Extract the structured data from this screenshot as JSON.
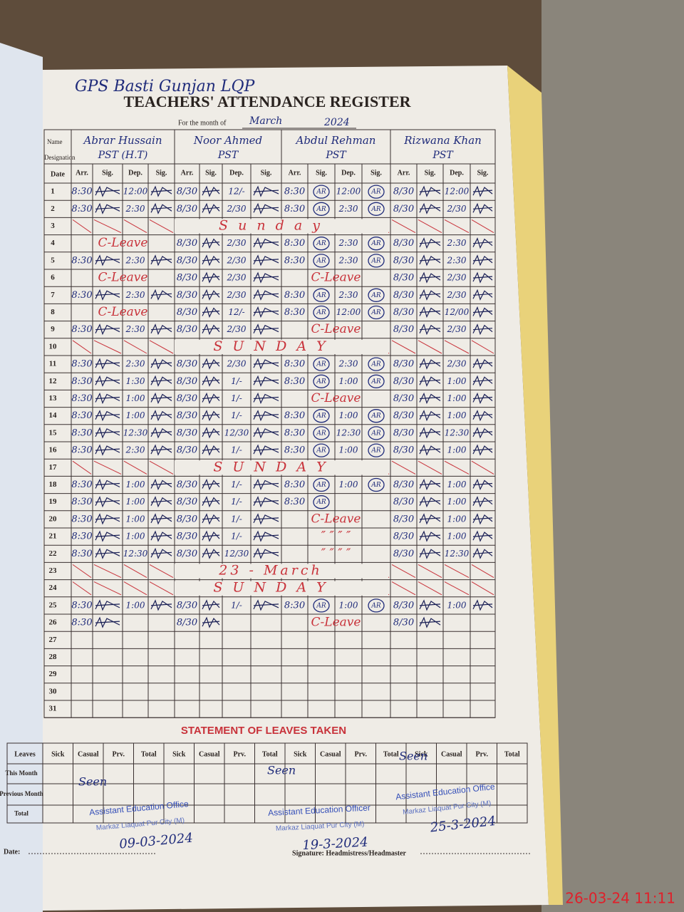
{
  "header": {
    "school": "GPS Basti Gunjan LQP",
    "title": "TEACHERS' ATTENDANCE REGISTER",
    "month_label": "For the month of",
    "month": "March",
    "year": "2024",
    "name_label": "Name",
    "designation_label": "Designation"
  },
  "table": {
    "columns": [
      "Date",
      "Arr.",
      "Sig.",
      "Dep.",
      "Sig."
    ],
    "teachers": [
      {
        "name": "Abrar Hussain",
        "designation": "PST (H.T)"
      },
      {
        "name": "Noor Ahmed",
        "designation": "PST"
      },
      {
        "name": "Abdul Rehman",
        "designation": "PST",
        "signature": "AR"
      },
      {
        "name": "Rizwana Khan",
        "designation": "PST"
      }
    ],
    "rows": [
      {
        "date": 1,
        "entries": [
          {
            "arr": "8:30",
            "dep": "12:00"
          },
          {
            "arr": "8/30",
            "dep": "12/-"
          },
          {
            "arr": "8:30",
            "dep": "12:00"
          },
          {
            "arr": "8/30",
            "dep": "12:00"
          }
        ]
      },
      {
        "date": 2,
        "entries": [
          {
            "arr": "8:30",
            "dep": "2:30"
          },
          {
            "arr": "8/30",
            "dep": "2/30"
          },
          {
            "arr": "8:30",
            "dep": "2:30"
          },
          {
            "arr": "8/30",
            "dep": "2/30"
          }
        ]
      },
      {
        "date": 3,
        "note": "S u n d a y"
      },
      {
        "date": 4,
        "entries": [
          {
            "note": "C-Leave"
          },
          {
            "arr": "8/30",
            "dep": "2/30"
          },
          {
            "arr": "8:30",
            "dep": "2:30"
          },
          {
            "arr": "8/30",
            "dep": "2:30"
          }
        ]
      },
      {
        "date": 5,
        "entries": [
          {
            "arr": "8:30",
            "dep": "2:30"
          },
          {
            "arr": "8/30",
            "dep": "2/30"
          },
          {
            "arr": "8:30",
            "dep": "2:30"
          },
          {
            "arr": "8/30",
            "dep": "2:30"
          }
        ]
      },
      {
        "date": 6,
        "entries": [
          {
            "note": "C-Leave"
          },
          {
            "arr": "8/30",
            "dep": "2/30"
          },
          {
            "note": "C-Leave"
          },
          {
            "arr": "8/30",
            "dep": "2/30"
          }
        ]
      },
      {
        "date": 7,
        "entries": [
          {
            "arr": "8:30",
            "dep": "2:30"
          },
          {
            "arr": "8/30",
            "dep": "2/30"
          },
          {
            "arr": "8:30",
            "dep": "2:30"
          },
          {
            "arr": "8/30",
            "dep": "2/30"
          }
        ]
      },
      {
        "date": 8,
        "entries": [
          {
            "note": "C-Leave"
          },
          {
            "arr": "8/30",
            "dep": "12/-"
          },
          {
            "arr": "8:30",
            "dep": "12:00"
          },
          {
            "arr": "8/30",
            "dep": "12/00"
          }
        ]
      },
      {
        "date": 9,
        "entries": [
          {
            "arr": "8:30",
            "dep": "2:30"
          },
          {
            "arr": "8/30",
            "dep": "2/30"
          },
          {
            "note": "C-Leave"
          },
          {
            "arr": "8/30",
            "dep": "2/30"
          }
        ]
      },
      {
        "date": 10,
        "note": "S U N D A Y"
      },
      {
        "date": 11,
        "entries": [
          {
            "arr": "8:30",
            "dep": "2:30"
          },
          {
            "arr": "8/30",
            "dep": "2/30"
          },
          {
            "arr": "8:30",
            "dep": "2:30"
          },
          {
            "arr": "8/30",
            "dep": "2/30"
          }
        ]
      },
      {
        "date": 12,
        "entries": [
          {
            "arr": "8:30",
            "dep": "1:30"
          },
          {
            "arr": "8/30",
            "dep": "1/-"
          },
          {
            "arr": "8:30",
            "dep": "1:00"
          },
          {
            "arr": "8/30",
            "dep": "1:00"
          }
        ]
      },
      {
        "date": 13,
        "entries": [
          {
            "arr": "8:30",
            "dep": "1:00"
          },
          {
            "arr": "8/30",
            "dep": "1/-"
          },
          {
            "note": "C-Leave"
          },
          {
            "arr": "8/30",
            "dep": "1:00"
          }
        ]
      },
      {
        "date": 14,
        "entries": [
          {
            "arr": "8:30",
            "dep": "1:00"
          },
          {
            "arr": "8/30",
            "dep": "1/-"
          },
          {
            "arr": "8:30",
            "dep": "1:00"
          },
          {
            "arr": "8/30",
            "dep": "1:00"
          }
        ]
      },
      {
        "date": 15,
        "entries": [
          {
            "arr": "8:30",
            "dep": "12:30"
          },
          {
            "arr": "8/30",
            "dep": "12/30"
          },
          {
            "arr": "8:30",
            "dep": "12:30"
          },
          {
            "arr": "8/30",
            "dep": "12:30"
          }
        ]
      },
      {
        "date": 16,
        "entries": [
          {
            "arr": "8:30",
            "dep": "2:30"
          },
          {
            "arr": "8/30",
            "dep": "1/-"
          },
          {
            "arr": "8:30",
            "dep": "1:00"
          },
          {
            "arr": "8/30",
            "dep": "1:00"
          }
        ]
      },
      {
        "date": 17,
        "note": "S U N D A Y"
      },
      {
        "date": 18,
        "entries": [
          {
            "arr": "8:30",
            "dep": "1:00"
          },
          {
            "arr": "8/30",
            "dep": "1/-"
          },
          {
            "arr": "8:30",
            "dep": "1:00"
          },
          {
            "arr": "8/30",
            "dep": "1:00"
          }
        ]
      },
      {
        "date": 19,
        "entries": [
          {
            "arr": "8:30",
            "dep": "1:00"
          },
          {
            "arr": "8/30",
            "dep": "1/-"
          },
          {
            "arr": "8:30"
          },
          {
            "arr": "8/30",
            "dep": "1:00"
          }
        ]
      },
      {
        "date": 20,
        "entries": [
          {
            "arr": "8:30",
            "dep": "1:00"
          },
          {
            "arr": "8/30",
            "dep": "1/-"
          },
          {
            "note": "C-Leave"
          },
          {
            "arr": "8/30",
            "dep": "1:00"
          }
        ]
      },
      {
        "date": 21,
        "entries": [
          {
            "arr": "8:30",
            "dep": "1:00"
          },
          {
            "arr": "8/30",
            "dep": "1/-"
          },
          {
            "note": "″   ″   ″   ″"
          },
          {
            "arr": "8/30",
            "dep": "1:00"
          }
        ]
      },
      {
        "date": 22,
        "entries": [
          {
            "arr": "8:30",
            "dep": "12:30"
          },
          {
            "arr": "8/30",
            "dep": "12/30"
          },
          {
            "note": "″   ″   ″   ″"
          },
          {
            "arr": "8/30",
            "dep": "12:30"
          }
        ]
      },
      {
        "date": 23,
        "note": "23 - March"
      },
      {
        "date": 24,
        "note": "S U N D A Y"
      },
      {
        "date": 25,
        "entries": [
          {
            "arr": "8:30",
            "dep": "1:00"
          },
          {
            "arr": "8/30",
            "dep": "1/-"
          },
          {
            "arr": "8:30",
            "dep": "1:00"
          },
          {
            "arr": "8/30",
            "dep": "1:00"
          }
        ]
      },
      {
        "date": 26,
        "entries": [
          {
            "arr": "8:30"
          },
          {
            "arr": "8/30"
          },
          {
            "note": "C-Leave"
          },
          {
            "arr": "8/30"
          }
        ]
      },
      {
        "date": 27
      },
      {
        "date": 28
      },
      {
        "date": 29
      },
      {
        "date": 30
      },
      {
        "date": 31
      }
    ]
  },
  "leaves": {
    "title": "STATEMENT OF LEAVES TAKEN",
    "columns": [
      "Leaves",
      "Sick",
      "Casual",
      "Prv.",
      "Total"
    ],
    "rows": [
      "This Month",
      "Previous Month",
      "Total"
    ]
  },
  "stamps": [
    {
      "remark": "Seen",
      "office": "Assistant Education Office",
      "place": "Markaz Liaquat Pur City (M)",
      "date": "09-03-2024"
    },
    {
      "remark": "Seen",
      "office": "Assistant Education Officer",
      "place": "Markaz Liaquat Pur City (M)",
      "date": "19-3-2024"
    },
    {
      "remark": "Seen",
      "office": "Assistant Education Office",
      "place": "Markaz Liaquat Pur City (M)",
      "date": "25-3-2024"
    }
  ],
  "footer": {
    "date_label": "Date:",
    "signature_label": "Signature: Headmistress/Headmaster",
    "timestamp": "26-03-24 11:11"
  }
}
